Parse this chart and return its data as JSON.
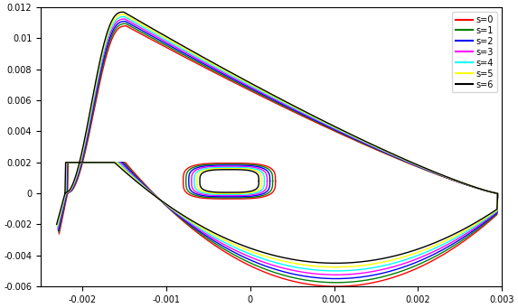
{
  "xlim": [
    -0.0025,
    0.003
  ],
  "ylim": [
    -0.006,
    0.012
  ],
  "xticks": [
    -0.002,
    -0.001,
    0,
    0.001,
    0.002,
    0.003
  ],
  "yticks": [
    -0.006,
    -0.004,
    -0.002,
    0,
    0.002,
    0.004,
    0.006,
    0.008,
    0.01,
    0.012
  ],
  "legend_labels": [
    "s=0",
    "s=1",
    "s=2",
    "s=3",
    "s=4",
    "s=5",
    "s=6"
  ],
  "colors": [
    "red",
    "green",
    "blue",
    "magenta",
    "cyan",
    "yellow",
    "black"
  ],
  "linewidth": 1.0,
  "figsize": [
    5.73,
    3.41
  ],
  "dpi": 100
}
